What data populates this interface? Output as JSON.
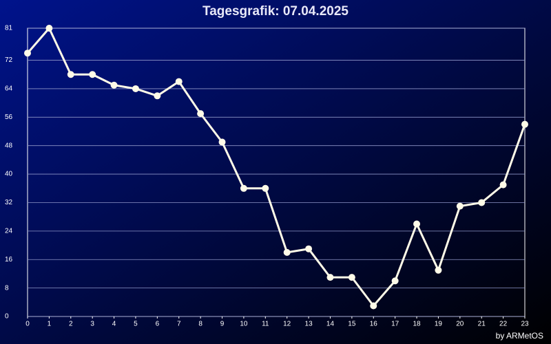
{
  "chart_data": {
    "type": "line",
    "title": "Tagesgrafik: 07.04.2025",
    "credit": "by ARMetOS",
    "x": [
      0,
      1,
      2,
      3,
      4,
      5,
      6,
      7,
      8,
      9,
      10,
      11,
      12,
      13,
      14,
      15,
      16,
      17,
      18,
      19,
      20,
      21,
      22,
      23
    ],
    "series": [
      {
        "color": "#fffbe8",
        "values": [
          74,
          81,
          68,
          68,
          65,
          64,
          62,
          66,
          57,
          49,
          36,
          36,
          18,
          19,
          11,
          11,
          3,
          10,
          26,
          13,
          31,
          32,
          37,
          54
        ]
      }
    ],
    "xlim": [
      0,
      23
    ],
    "xticks": [
      0,
      1,
      2,
      3,
      4,
      5,
      6,
      7,
      8,
      9,
      10,
      11,
      12,
      13,
      14,
      15,
      16,
      17,
      18,
      19,
      20,
      21,
      22,
      23
    ],
    "ylim": [
      0,
      81
    ],
    "yticks": [
      0,
      8,
      16,
      24,
      32,
      40,
      48,
      56,
      64,
      72,
      81
    ],
    "grid": true
  }
}
